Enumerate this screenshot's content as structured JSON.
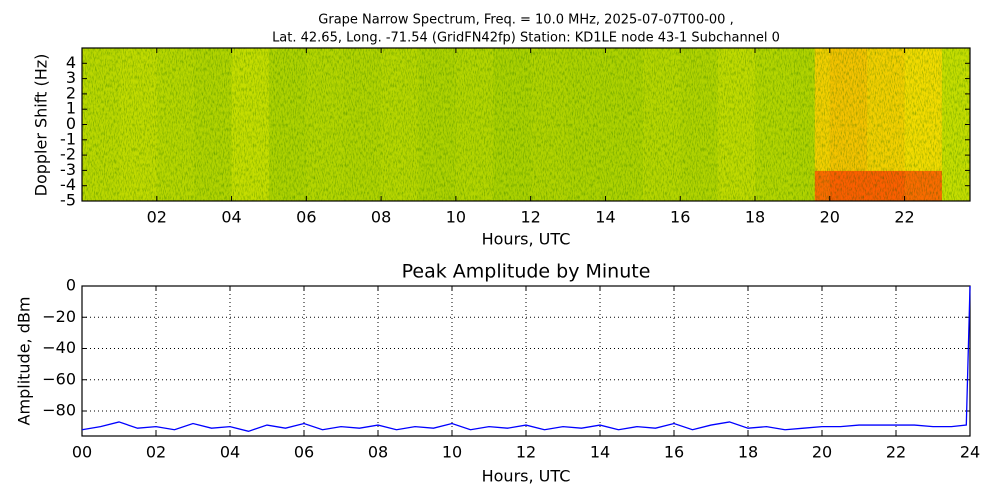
{
  "chart_data": [
    {
      "type": "heatmap",
      "title": [
        "Grape Narrow Spectrum, Freq. = 10.0 MHz, 2025-07-07T00-00 ,",
        "Lat.  42.65, Long. -71.54 (GridFN42fp) Station: KD1LE node 43-1 Subchannel 0"
      ],
      "xlabel": "Hours, UTC",
      "ylabel": "Doppler Shift (Hz)",
      "xlim": [
        0,
        23.75
      ],
      "ylim": [
        -5,
        5
      ],
      "xticks": [
        {
          "value": 2,
          "label": "02"
        },
        {
          "value": 4,
          "label": "04"
        },
        {
          "value": 6,
          "label": "06"
        },
        {
          "value": 8,
          "label": "08"
        },
        {
          "value": 10,
          "label": "10"
        },
        {
          "value": 12,
          "label": "12"
        },
        {
          "value": 14,
          "label": "14"
        },
        {
          "value": 16,
          "label": "16"
        },
        {
          "value": 18,
          "label": "18"
        },
        {
          "value": 20,
          "label": "20"
        },
        {
          "value": 22,
          "label": "22"
        }
      ],
      "yticks": [
        4,
        3,
        2,
        1,
        0,
        -1,
        -2,
        -3,
        -4,
        -5
      ],
      "xbins": [
        0,
        1,
        2,
        3,
        4,
        5,
        6,
        7,
        8,
        9,
        10,
        11,
        12,
        13,
        14,
        15,
        16,
        17,
        18,
        19,
        19.6,
        20,
        21,
        22,
        23,
        23.75
      ],
      "ybins": [
        -5,
        -3,
        -1,
        1,
        3,
        5
      ],
      "zlim": [
        0,
        1
      ],
      "colormap": [
        "#1f7a00",
        "#8fc400",
        "#f0f000",
        "#ff2000"
      ],
      "z": [
        [
          0.48,
          0.5,
          0.47,
          0.45,
          0.52,
          0.44,
          0.46,
          0.45,
          0.47,
          0.44,
          0.46,
          0.43,
          0.45,
          0.44,
          0.44,
          0.47,
          0.45,
          0.5,
          0.46,
          0.45,
          0.88,
          0.9,
          0.9,
          0.88,
          0.52
        ],
        [
          0.48,
          0.5,
          0.47,
          0.45,
          0.52,
          0.44,
          0.46,
          0.45,
          0.47,
          0.44,
          0.46,
          0.43,
          0.45,
          0.44,
          0.44,
          0.47,
          0.45,
          0.5,
          0.46,
          0.45,
          0.72,
          0.74,
          0.72,
          0.7,
          0.52
        ],
        [
          0.48,
          0.5,
          0.47,
          0.45,
          0.52,
          0.44,
          0.46,
          0.45,
          0.47,
          0.44,
          0.46,
          0.43,
          0.45,
          0.44,
          0.44,
          0.47,
          0.45,
          0.5,
          0.46,
          0.45,
          0.72,
          0.74,
          0.72,
          0.7,
          0.52
        ],
        [
          0.48,
          0.5,
          0.47,
          0.45,
          0.52,
          0.44,
          0.46,
          0.45,
          0.47,
          0.44,
          0.46,
          0.43,
          0.45,
          0.44,
          0.44,
          0.47,
          0.45,
          0.5,
          0.46,
          0.45,
          0.72,
          0.74,
          0.72,
          0.7,
          0.52
        ],
        [
          0.48,
          0.5,
          0.47,
          0.45,
          0.52,
          0.44,
          0.46,
          0.45,
          0.47,
          0.44,
          0.46,
          0.43,
          0.45,
          0.44,
          0.44,
          0.47,
          0.45,
          0.5,
          0.46,
          0.45,
          0.72,
          0.74,
          0.72,
          0.7,
          0.52
        ]
      ]
    },
    {
      "type": "line",
      "title": "Peak Amplitude by Minute",
      "xlabel": "Hours, UTC",
      "ylabel": "Amplitude, dBm",
      "xlim": [
        0,
        24
      ],
      "ylim": [
        -96,
        0
      ],
      "xticks": [
        {
          "value": 0,
          "label": "00"
        },
        {
          "value": 2,
          "label": "02"
        },
        {
          "value": 4,
          "label": "04"
        },
        {
          "value": 6,
          "label": "06"
        },
        {
          "value": 8,
          "label": "08"
        },
        {
          "value": 10,
          "label": "10"
        },
        {
          "value": 12,
          "label": "12"
        },
        {
          "value": 14,
          "label": "14"
        },
        {
          "value": 16,
          "label": "16"
        },
        {
          "value": 18,
          "label": "18"
        },
        {
          "value": 20,
          "label": "20"
        },
        {
          "value": 22,
          "label": "22"
        },
        {
          "value": 24,
          "label": "24"
        }
      ],
      "yticks": [
        0,
        {
          "value": -20,
          "label": "−20"
        },
        {
          "value": -40,
          "label": "−40"
        },
        {
          "value": -60,
          "label": "−60"
        },
        {
          "value": -80,
          "label": "−80"
        }
      ],
      "grid": true,
      "color": "#0000ff",
      "x": [
        0,
        0.5,
        1,
        1.5,
        2,
        2.5,
        3,
        3.5,
        4,
        4.5,
        5,
        5.5,
        6,
        6.5,
        7,
        7.5,
        8,
        8.5,
        9,
        9.5,
        10,
        10.5,
        11,
        11.5,
        12,
        12.5,
        13,
        13.5,
        14,
        14.5,
        15,
        15.5,
        16,
        16.5,
        17,
        17.5,
        18,
        18.5,
        19,
        19.5,
        20,
        20.5,
        21,
        21.5,
        22,
        22.5,
        23,
        23.5,
        23.9,
        24
      ],
      "values": [
        -92,
        -90,
        -87,
        -91,
        -90,
        -92,
        -88,
        -91,
        -90,
        -93,
        -89,
        -91,
        -88,
        -92,
        -90,
        -91,
        -89,
        -92,
        -90,
        -91,
        -88,
        -92,
        -90,
        -91,
        -89,
        -92,
        -90,
        -91,
        -89,
        -92,
        -90,
        -91,
        -88,
        -92,
        -89,
        -87,
        -91,
        -90,
        -92,
        -91,
        -90,
        -90,
        -89,
        -89,
        -89,
        -89,
        -90,
        -90,
        -89,
        0
      ]
    }
  ]
}
